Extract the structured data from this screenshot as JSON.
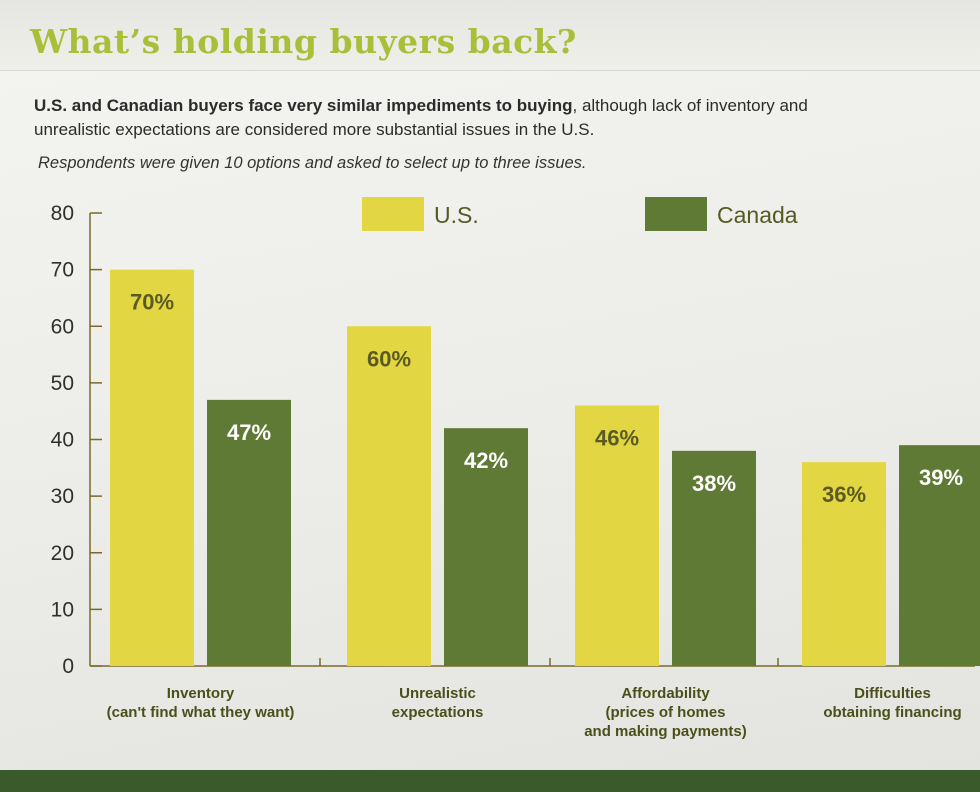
{
  "headline": "What’s holding buyers back?",
  "deck": {
    "bold": "U.S. and Canadian buyers face very similar impediments to buying",
    "rest": ", although lack of inventory and unrealistic expectations are considered more substantial issues in the U.S."
  },
  "note": "Respondents were given 10 options and asked to select up to three issues.",
  "colors": {
    "us": "#e2d642",
    "canada": "#5e7a35",
    "axis": "#7a6a2a"
  },
  "chart_data": {
    "type": "bar",
    "title": "",
    "xlabel": "",
    "ylabel": "",
    "ylim": [
      0,
      80
    ],
    "yticks": [
      0,
      10,
      20,
      30,
      40,
      50,
      60,
      70,
      80
    ],
    "legend_position": "top",
    "categories": [
      [
        "Inventory",
        "(can't find what they want)"
      ],
      [
        "Unrealistic",
        "expectations"
      ],
      [
        "Affordability",
        "(prices of homes",
        "and making payments)"
      ],
      [
        "Difficulties",
        "obtaining financing"
      ]
    ],
    "series": [
      {
        "name": "U.S.",
        "values": [
          70,
          60,
          46,
          36
        ],
        "labels": [
          "70%",
          "60%",
          "46%",
          "36%"
        ]
      },
      {
        "name": "Canada",
        "values": [
          47,
          42,
          38,
          39
        ],
        "labels": [
          "47%",
          "42%",
          "38%",
          "39%"
        ]
      }
    ]
  }
}
